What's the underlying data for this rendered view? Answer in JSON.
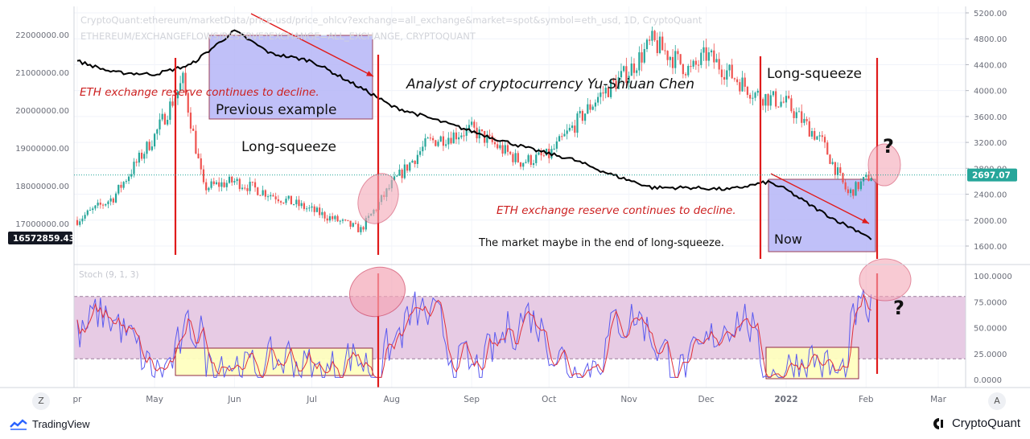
{
  "header": {
    "line1": "CryptoQuant:ethereum/marketData/price-usd/price_ohlcv?exchange=all_exchange&market=spot&symbol=eth_usd, 1D, CryptoQuant",
    "line2": "ETHEREUM/EXCHANGEFLOWS/RESERVE?EXCHANGE=ALL_EXCHANGE, CRYPTOQUANT"
  },
  "annotations": {
    "reserve_decline_1": "ETH exchange reserve continues to decline.",
    "previous_example": "Previous example",
    "analyst": "Analyst of cryptocurrency Yu-Shiuan Chen",
    "long_squeeze_1": "Long-squeeze",
    "long_squeeze_2": "Long-squeeze",
    "reserve_decline_2": "ETH exchange reserve continues to decline.",
    "market_end": "The market maybe in the end of long-squeeze.",
    "now": "Now",
    "question_1": "?",
    "question_2": "?"
  },
  "price_axis": {
    "labels": [
      "5200.00",
      "4800.00",
      "4400.00",
      "4000.00",
      "3600.00",
      "3200.00",
      "2800.00",
      "2400.00",
      "2000.00",
      "1600.00"
    ],
    "values": [
      5200,
      4800,
      4400,
      4000,
      3600,
      3200,
      2800,
      2400,
      2000,
      1600
    ],
    "current_price": "2697.07"
  },
  "reserve_axis": {
    "labels": [
      "22000000.00",
      "21000000.00",
      "20000000.00",
      "19000000.00",
      "18000000.00",
      "17000000.00"
    ],
    "values": [
      22000000,
      21000000,
      20000000,
      19000000,
      18000000,
      17000000
    ],
    "current_reserve": "16572859.43"
  },
  "stoch_axis": {
    "labels": [
      "100.0000",
      "75.0000",
      "50.0000",
      "25.0000",
      "0.0000"
    ],
    "values": [
      100,
      75,
      50,
      25,
      0
    ],
    "title": "Stoch (9, 1, 3)"
  },
  "time_axis": {
    "labels": [
      "pr",
      "May",
      "Jun",
      "Jul",
      "Aug",
      "Sep",
      "Oct",
      "Nov",
      "Dec",
      "2022",
      "Feb",
      "Mar"
    ],
    "dates": [
      "2021-04-01",
      "2021-05-01",
      "2021-06-01",
      "2021-07-01",
      "2021-08-01",
      "2021-09-01",
      "2021-10-01",
      "2021-11-01",
      "2021-12-01",
      "2022-01-01",
      "2022-02-01",
      "2022-03-01"
    ]
  },
  "buttons": {
    "zoom": "Z",
    "auto": "A"
  },
  "footer": {
    "left_brand": "TradingView",
    "right_brand": "CryptoQuant"
  },
  "colors": {
    "up": "#26a69a",
    "down": "#ef5350",
    "reserve": "#000000",
    "stoch_k": "#5b5bf0",
    "stoch_d": "#e0303a",
    "stoch_band": "#e6c8e3",
    "annotation_red": "#cc1f1f",
    "box_blue": "#b6b6f7",
    "box_yellow": "#ffffc0",
    "ellipse_pink": "#f4a7b7"
  },
  "chart_data": {
    "type": "candlestick",
    "price_series": {
      "name": "ETH/USD",
      "x": [
        "2021-04-01",
        "2021-04-15",
        "2021-05-01",
        "2021-05-12",
        "2021-05-20",
        "2021-06-01",
        "2021-06-15",
        "2021-07-01",
        "2021-07-20",
        "2021-08-01",
        "2021-08-15",
        "2021-09-01",
        "2021-09-20",
        "2021-10-01",
        "2021-10-20",
        "2021-11-01",
        "2021-11-10",
        "2021-11-25",
        "2021-12-01",
        "2021-12-20",
        "2022-01-01",
        "2022-01-15",
        "2022-01-25",
        "2022-02-03"
      ],
      "close": [
        2000,
        2350,
        3300,
        4150,
        2500,
        2600,
        2400,
        2150,
        1850,
        2550,
        3200,
        3400,
        2900,
        3000,
        3900,
        4300,
        4750,
        4300,
        4550,
        3950,
        3800,
        3200,
        2400,
        2697
      ]
    },
    "reserve_series": {
      "name": "ETH exchange reserve",
      "x": [
        "2021-04-01",
        "2021-04-15",
        "2021-05-01",
        "2021-05-15",
        "2021-06-01",
        "2021-06-15",
        "2021-07-01",
        "2021-07-25",
        "2021-08-01",
        "2021-08-20",
        "2021-09-10",
        "2021-09-25",
        "2021-10-10",
        "2021-10-25",
        "2021-11-10",
        "2021-11-25",
        "2021-12-10",
        "2021-12-25",
        "2022-01-01",
        "2022-01-10",
        "2022-01-20",
        "2022-02-01",
        "2022-02-03"
      ],
      "values": [
        21300000,
        21000000,
        20950000,
        21200000,
        22100000,
        21500000,
        21300000,
        20400000,
        20100000,
        19700000,
        19250000,
        18950000,
        18700000,
        18300000,
        17950000,
        17950000,
        17900000,
        18100000,
        17900000,
        17500000,
        17100000,
        16700000,
        16573000
      ]
    },
    "stochastic": {
      "name": "Stoch (9, 1, 3)",
      "overbought": 80,
      "oversold": 20,
      "ylim": [
        0,
        100
      ]
    },
    "price_ylim": [
      1600,
      5200
    ],
    "reserve_ylim": [
      16500000,
      22300000
    ]
  }
}
